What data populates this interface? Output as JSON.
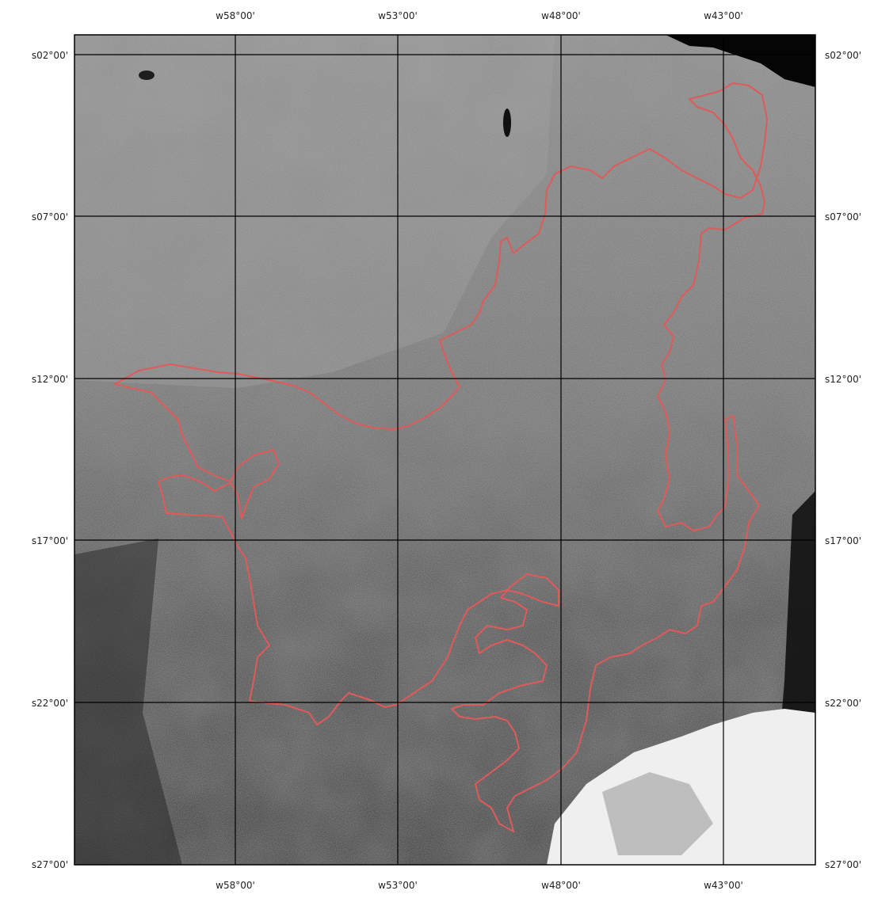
{
  "map": {
    "longitude_labels_top": [
      "w58°00'",
      "w53°00'",
      "w48°00'",
      "w43°00'"
    ],
    "longitude_labels_bottom": [
      "w58°00'",
      "w53°00'",
      "w48°00'",
      "w43°00'"
    ],
    "latitude_labels_left": [
      "s02°00'",
      "s07°00'",
      "s12°00'",
      "s17°00'",
      "s22°00'",
      "s27°00'"
    ],
    "latitude_labels_right": [
      "s02°00'",
      "s07°00'",
      "s12°00'",
      "s17°00'",
      "s22°00'",
      "s27°00'"
    ],
    "graticule_color": "#000000",
    "boundary_color": "#e05a5a",
    "imagery": "grayscale satellite image",
    "cloud_color": "#ffffff",
    "water_color": "#050505"
  }
}
